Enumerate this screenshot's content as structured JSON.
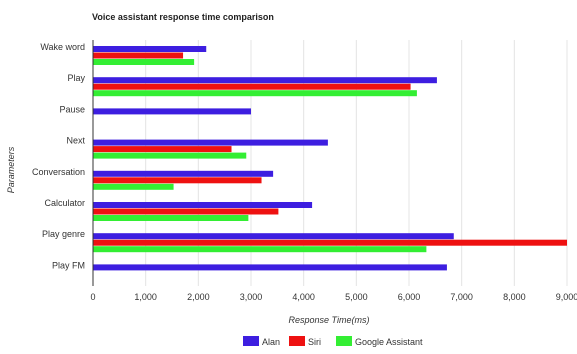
{
  "chart_data": {
    "type": "bar",
    "orientation": "horizontal",
    "title": "Voice assistant response time comparison",
    "xlabel": "Response Time(ms)",
    "ylabel": "Parameters",
    "categories": [
      "Wake word",
      "Play",
      "Pause",
      "Next",
      "Conversation",
      "Calculator",
      "Play genre",
      "Play FM"
    ],
    "series": [
      {
        "name": "Alan",
        "color": "#3d1ee0",
        "values": [
          2150,
          6530,
          3000,
          4460,
          3420,
          4160,
          6850,
          6720
        ]
      },
      {
        "name": "Siri",
        "color": "#ee1111",
        "values": [
          1710,
          6030,
          null,
          2630,
          3200,
          3520,
          9000,
          null
        ]
      },
      {
        "name": "Google Assistant",
        "color": "#33ee33",
        "values": [
          1920,
          6150,
          null,
          2910,
          1530,
          2950,
          6330,
          null
        ]
      }
    ],
    "xlim": [
      0,
      9000
    ],
    "xticks": [
      0,
      1000,
      2000,
      3000,
      4000,
      5000,
      6000,
      7000,
      8000,
      9000
    ],
    "xtick_labels": [
      "0",
      "1,000",
      "2,000",
      "3,000",
      "4,000",
      "5,000",
      "6,000",
      "7,000",
      "8,000",
      "9,000"
    ],
    "grid": true,
    "legend_position": "bottom"
  }
}
